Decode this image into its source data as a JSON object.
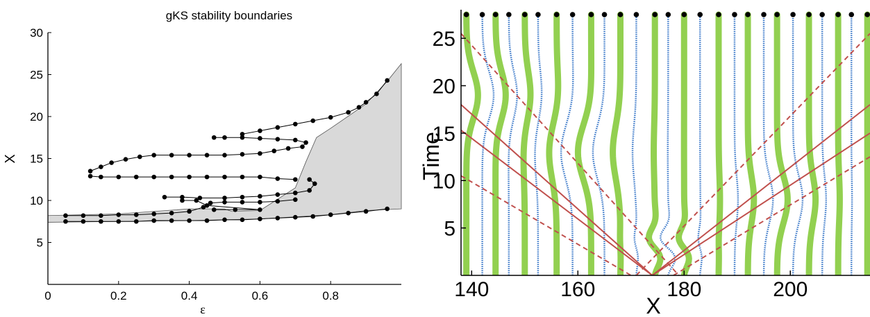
{
  "chart_data": [
    {
      "type": "scatter",
      "title": "gKS stability boundaries",
      "xlabel": "ε",
      "ylabel": "X",
      "xlim": [
        0,
        1.0
      ],
      "ylim": [
        0,
        30
      ],
      "xticks": [
        "0",
        "0.2",
        "0.4",
        "0.6",
        "0.8"
      ],
      "yticks": [
        "5",
        "10",
        "15",
        "20",
        "25",
        "30"
      ],
      "grid": false,
      "colors": {
        "region": "#d9d9d9",
        "boundary": "#000000"
      },
      "region_upper": [
        [
          0,
          8.2
        ],
        [
          0.2,
          8.4
        ],
        [
          0.4,
          9.0
        ],
        [
          0.5,
          9.0
        ],
        [
          0.52,
          8.7
        ],
        [
          0.6,
          8.8
        ],
        [
          0.7,
          11.5
        ],
        [
          0.73,
          14.6
        ],
        [
          0.76,
          17.5
        ],
        [
          0.8,
          18.6
        ],
        [
          0.9,
          21.5
        ],
        [
          0.96,
          24.2
        ],
        [
          1.0,
          26.3
        ]
      ],
      "region_lower": [
        [
          0,
          7.4
        ],
        [
          0.2,
          7.5
        ],
        [
          0.4,
          7.6
        ],
        [
          0.6,
          7.8
        ],
        [
          0.8,
          8.3
        ],
        [
          0.9,
          8.8
        ],
        [
          1.0,
          9.0
        ]
      ],
      "series": [
        {
          "points": [
            [
              0.05,
              7.5
            ],
            [
              0.1,
              7.5
            ],
            [
              0.15,
              7.5
            ],
            [
              0.2,
              7.5
            ],
            [
              0.25,
              7.5
            ],
            [
              0.3,
              7.6
            ],
            [
              0.35,
              7.6
            ],
            [
              0.4,
              7.6
            ],
            [
              0.45,
              7.6
            ],
            [
              0.5,
              7.7
            ],
            [
              0.55,
              7.7
            ],
            [
              0.6,
              7.8
            ],
            [
              0.65,
              7.9
            ],
            [
              0.7,
              8.0
            ],
            [
              0.75,
              8.1
            ],
            [
              0.8,
              8.3
            ],
            [
              0.85,
              8.5
            ],
            [
              0.9,
              8.7
            ],
            [
              0.96,
              9.0
            ]
          ]
        },
        {
          "points": [
            [
              0.05,
              8.2
            ],
            [
              0.1,
              8.2
            ],
            [
              0.15,
              8.2
            ],
            [
              0.2,
              8.3
            ],
            [
              0.25,
              8.3
            ],
            [
              0.3,
              8.4
            ],
            [
              0.35,
              8.5
            ],
            [
              0.4,
              8.7
            ],
            [
              0.44,
              9.2
            ],
            [
              0.46,
              9.7
            ],
            [
              0.5,
              9.8
            ],
            [
              0.55,
              9.8
            ],
            [
              0.6,
              9.8
            ],
            [
              0.65,
              9.9
            ],
            [
              0.7,
              10.1
            ]
          ]
        },
        {
          "points": [
            [
              0.33,
              10.4
            ],
            [
              0.38,
              10.4
            ],
            [
              0.43,
              10.3
            ],
            [
              0.5,
              10.3
            ],
            [
              0.55,
              10.4
            ],
            [
              0.6,
              10.5
            ],
            [
              0.65,
              10.7
            ],
            [
              0.7,
              10.9
            ],
            [
              0.74,
              11.2
            ],
            [
              0.755,
              12.0
            ],
            [
              0.74,
              12.5
            ]
          ]
        },
        {
          "points": [
            [
              0.12,
              12.9
            ],
            [
              0.15,
              12.8
            ],
            [
              0.2,
              12.8
            ],
            [
              0.25,
              12.8
            ],
            [
              0.3,
              12.8
            ],
            [
              0.35,
              12.8
            ],
            [
              0.4,
              12.8
            ],
            [
              0.45,
              12.8
            ],
            [
              0.5,
              12.8
            ],
            [
              0.55,
              12.8
            ],
            [
              0.6,
              12.8
            ],
            [
              0.65,
              12.6
            ],
            [
              0.7,
              12.5
            ]
          ]
        },
        {
          "points": [
            [
              0.12,
              13.5
            ],
            [
              0.15,
              14.0
            ],
            [
              0.18,
              14.5
            ],
            [
              0.22,
              14.9
            ],
            [
              0.26,
              15.2
            ],
            [
              0.3,
              15.4
            ],
            [
              0.35,
              15.4
            ],
            [
              0.4,
              15.4
            ],
            [
              0.45,
              15.4
            ],
            [
              0.5,
              15.4
            ],
            [
              0.55,
              15.5
            ],
            [
              0.6,
              15.6
            ],
            [
              0.64,
              15.9
            ],
            [
              0.68,
              16.2
            ],
            [
              0.72,
              16.4
            ],
            [
              0.73,
              16.9
            ],
            [
              0.7,
              17.2
            ],
            [
              0.65,
              17.3
            ],
            [
              0.6,
              17.4
            ],
            [
              0.55,
              17.5
            ],
            [
              0.5,
              17.5
            ],
            [
              0.47,
              17.5
            ]
          ]
        },
        {
          "points": [
            [
              0.55,
              17.9
            ],
            [
              0.6,
              18.3
            ],
            [
              0.65,
              18.7
            ],
            [
              0.7,
              19.1
            ],
            [
              0.75,
              19.5
            ],
            [
              0.8,
              19.9
            ],
            [
              0.85,
              20.5
            ],
            [
              0.88,
              21.1
            ],
            [
              0.9,
              21.7
            ],
            [
              0.93,
              22.7
            ],
            [
              0.96,
              24.3
            ]
          ]
        },
        {
          "points": [
            [
              0.47,
              8.9
            ],
            [
              0.53,
              8.9
            ],
            [
              0.6,
              8.9
            ],
            [
              0.45,
              9.4
            ],
            [
              0.42,
              10.0
            ],
            [
              0.38,
              10.0
            ]
          ]
        }
      ]
    },
    {
      "type": "line",
      "xlabel": "X",
      "ylabel": "Time",
      "xlim": [
        138,
        215
      ],
      "ylim": [
        0,
        27.5
      ],
      "xticks": [
        "140",
        "160",
        "180",
        "200"
      ],
      "yticks": [
        "5",
        "10",
        "15",
        "20",
        "25"
      ],
      "colors": {
        "green": "#92d050",
        "blue": "#3a78c9",
        "red": "#c0504d",
        "black": "#000000"
      },
      "green_positions": [
        139.0,
        144.5,
        150.0,
        156.0,
        162.5,
        168.0,
        174.5,
        180.0,
        186.5,
        192.0,
        197.5,
        203.5,
        209.0,
        214.5
      ],
      "blue_positions": [
        142.0,
        147.0,
        152.5,
        159.0,
        165.0,
        171.0,
        177.0,
        183.0,
        189.5,
        195.0,
        200.5,
        206.0,
        211.5
      ],
      "red_solid": [
        [
          [
            138,
            18.0
          ],
          [
            174,
            0
          ]
        ],
        [
          [
            138,
            15.3
          ],
          [
            174,
            0
          ]
        ],
        [
          [
            174,
            0
          ],
          [
            215,
            15.0
          ]
        ],
        [
          [
            174,
            0
          ],
          [
            215,
            18.0
          ]
        ]
      ],
      "red_dashed": [
        [
          [
            138,
            25.5
          ],
          [
            179,
            0
          ]
        ],
        [
          [
            138,
            10.5
          ],
          [
            170,
            0
          ]
        ],
        [
          [
            171,
            0
          ],
          [
            215,
            25.5
          ]
        ],
        [
          [
            178,
            0
          ],
          [
            215,
            12.5
          ]
        ]
      ],
      "top_dots_y": 27.5
    }
  ]
}
